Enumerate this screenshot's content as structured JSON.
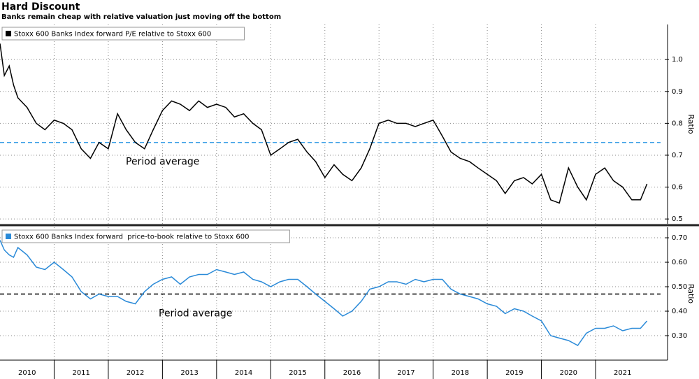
{
  "title": "Hard Discount",
  "subtitle": "Banks remain cheap with relative valuation just moving off the bottom",
  "chart_data": [
    {
      "type": "line",
      "legend": "Stoxx 600 Banks Index forward P/E relative to Stoxx 600",
      "ylabel": "Ratio",
      "grid": true,
      "legend_position": "upper left",
      "xlim": [
        2010,
        2022.2
      ],
      "year_boundaries": [
        2011,
        2012,
        2013,
        2014,
        2015,
        2016,
        2017,
        2018,
        2019,
        2020,
        2021
      ],
      "ylim": [
        0.485,
        1.11
      ],
      "yticks": [
        0.5,
        0.6,
        0.7,
        0.8,
        0.9,
        {
          "value": 1,
          "label": "1.0"
        }
      ],
      "period_average": {
        "label": "Period average",
        "value": 0.74,
        "color": "#3a9fe6"
      },
      "series": [
        {
          "name": "Stoxx 600 Banks Index forward P/E relative to Stoxx 600",
          "color": "#000000",
          "x": [
            2010.0,
            2010.08,
            2010.17,
            2010.25,
            2010.33,
            2010.5,
            2010.67,
            2010.83,
            2011.0,
            2011.17,
            2011.33,
            2011.5,
            2011.67,
            2011.83,
            2012.0,
            2012.17,
            2012.33,
            2012.5,
            2012.67,
            2012.83,
            2013.0,
            2013.17,
            2013.33,
            2013.5,
            2013.67,
            2013.83,
            2014.0,
            2014.17,
            2014.33,
            2014.5,
            2014.67,
            2014.83,
            2015.0,
            2015.17,
            2015.33,
            2015.5,
            2015.67,
            2015.83,
            2016.0,
            2016.17,
            2016.33,
            2016.5,
            2016.67,
            2016.83,
            2017.0,
            2017.17,
            2017.33,
            2017.5,
            2017.67,
            2017.83,
            2018.0,
            2018.17,
            2018.33,
            2018.5,
            2018.67,
            2018.83,
            2019.0,
            2019.17,
            2019.33,
            2019.5,
            2019.67,
            2019.83,
            2020.0,
            2020.17,
            2020.33,
            2020.5,
            2020.67,
            2020.83,
            2021.0,
            2021.17,
            2021.33,
            2021.5,
            2021.67,
            2021.83,
            2021.95
          ],
          "values": [
            1.05,
            0.95,
            0.98,
            0.92,
            0.88,
            0.85,
            0.8,
            0.78,
            0.81,
            0.8,
            0.78,
            0.72,
            0.69,
            0.74,
            0.72,
            0.83,
            0.78,
            0.74,
            0.72,
            0.78,
            0.84,
            0.87,
            0.86,
            0.84,
            0.87,
            0.85,
            0.86,
            0.85,
            0.82,
            0.83,
            0.8,
            0.78,
            0.7,
            0.72,
            0.74,
            0.75,
            0.71,
            0.68,
            0.63,
            0.67,
            0.64,
            0.62,
            0.66,
            0.72,
            0.8,
            0.81,
            0.8,
            0.8,
            0.79,
            0.8,
            0.81,
            0.76,
            0.71,
            0.69,
            0.68,
            0.66,
            0.64,
            0.62,
            0.58,
            0.62,
            0.63,
            0.61,
            0.64,
            0.56,
            0.55,
            0.66,
            0.6,
            0.56,
            0.64,
            0.66,
            0.62,
            0.6,
            0.56,
            0.56,
            0.61
          ]
        }
      ]
    },
    {
      "type": "line",
      "legend": "Stoxx 600 Banks Index forward  price-to-book relative to Stoxx 600",
      "ylabel": "Ratio",
      "grid": true,
      "legend_position": "upper left",
      "xlim": [
        2010,
        2022.2
      ],
      "year_boundaries": [
        2011,
        2012,
        2013,
        2014,
        2015,
        2016,
        2017,
        2018,
        2019,
        2020,
        2021
      ],
      "xticks": [
        {
          "value": 2010.5,
          "label": "2010"
        },
        {
          "value": 2011.5,
          "label": "2011"
        },
        {
          "value": 2012.5,
          "label": "2012"
        },
        {
          "value": 2013.5,
          "label": "2013"
        },
        {
          "value": 2014.5,
          "label": "2014"
        },
        {
          "value": 2015.5,
          "label": "2015"
        },
        {
          "value": 2016.5,
          "label": "2016"
        },
        {
          "value": 2017.5,
          "label": "2017"
        },
        {
          "value": 2018.5,
          "label": "2018"
        },
        {
          "value": 2019.5,
          "label": "2019"
        },
        {
          "value": 2020.5,
          "label": "2020"
        },
        {
          "value": 2021.5,
          "label": "2021"
        }
      ],
      "ylim": [
        0.2,
        0.743
      ],
      "yticks": [
        {
          "value": 0.3,
          "label": "0.30"
        },
        {
          "value": 0.4,
          "label": "0.40"
        },
        {
          "value": 0.5,
          "label": "0.50"
        },
        {
          "value": 0.6,
          "label": "0.60"
        },
        {
          "value": 0.7,
          "label": "0.70"
        }
      ],
      "period_average": {
        "label": "Period average",
        "value": 0.47,
        "color": "#000000"
      },
      "series": [
        {
          "name": "Stoxx 600 Banks Index forward  price-to-book relative to Stoxx 600",
          "color": "#2a8ad8",
          "x": [
            2010.0,
            2010.08,
            2010.17,
            2010.25,
            2010.33,
            2010.5,
            2010.67,
            2010.83,
            2011.0,
            2011.17,
            2011.33,
            2011.5,
            2011.67,
            2011.83,
            2012.0,
            2012.17,
            2012.33,
            2012.5,
            2012.67,
            2012.83,
            2013.0,
            2013.17,
            2013.33,
            2013.5,
            2013.67,
            2013.83,
            2014.0,
            2014.17,
            2014.33,
            2014.5,
            2014.67,
            2014.83,
            2015.0,
            2015.17,
            2015.33,
            2015.5,
            2015.67,
            2015.83,
            2016.0,
            2016.17,
            2016.33,
            2016.5,
            2016.67,
            2016.83,
            2017.0,
            2017.17,
            2017.33,
            2017.5,
            2017.67,
            2017.83,
            2018.0,
            2018.17,
            2018.33,
            2018.5,
            2018.67,
            2018.83,
            2019.0,
            2019.17,
            2019.33,
            2019.5,
            2019.67,
            2019.83,
            2020.0,
            2020.17,
            2020.33,
            2020.5,
            2020.67,
            2020.83,
            2021.0,
            2021.17,
            2021.33,
            2021.5,
            2021.67,
            2021.83,
            2021.95
          ],
          "values": [
            0.69,
            0.65,
            0.63,
            0.62,
            0.66,
            0.63,
            0.58,
            0.57,
            0.6,
            0.57,
            0.54,
            0.48,
            0.45,
            0.47,
            0.46,
            0.46,
            0.44,
            0.43,
            0.48,
            0.51,
            0.53,
            0.54,
            0.51,
            0.54,
            0.55,
            0.55,
            0.57,
            0.56,
            0.55,
            0.56,
            0.53,
            0.52,
            0.5,
            0.52,
            0.53,
            0.53,
            0.5,
            0.47,
            0.44,
            0.41,
            0.38,
            0.4,
            0.44,
            0.49,
            0.5,
            0.52,
            0.52,
            0.51,
            0.53,
            0.52,
            0.53,
            0.53,
            0.49,
            0.47,
            0.46,
            0.45,
            0.43,
            0.42,
            0.39,
            0.41,
            0.4,
            0.38,
            0.36,
            0.3,
            0.29,
            0.28,
            0.26,
            0.31,
            0.33,
            0.33,
            0.34,
            0.32,
            0.33,
            0.33,
            0.36
          ]
        }
      ]
    }
  ]
}
